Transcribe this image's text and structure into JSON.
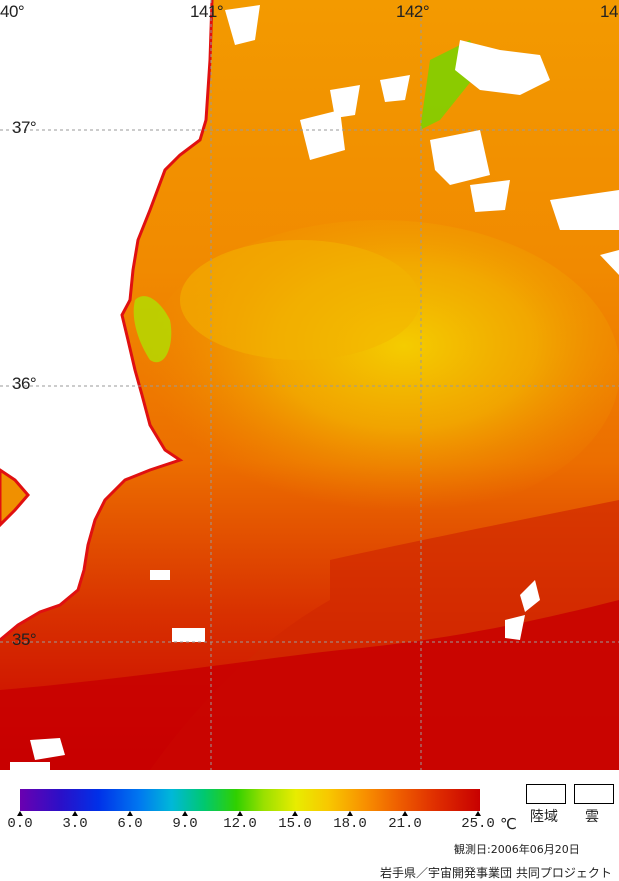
{
  "map": {
    "lon_labels": [
      "40°",
      "141°",
      "142°",
      "14"
    ],
    "lat_labels": [
      "37°",
      "36°",
      "35°"
    ],
    "colors": {
      "land": "#ffffff",
      "coastline": "#e01010",
      "grid": "#9a9a9a",
      "sea_cool": "#f2c200",
      "sea_mid": "#f09000",
      "sea_warm": "#e85000",
      "sea_hot": "#c80000",
      "sea_green": "#a8e000"
    }
  },
  "legend": {
    "scale_labels": [
      "0.0",
      "3.0",
      "6.0",
      "9.0",
      "12.0",
      "15.0",
      "18.0",
      "21.0",
      "25.0"
    ],
    "unit": "℃",
    "land_label": "陸域",
    "cloud_label": "雲"
  },
  "footer": {
    "observation_date": "観測日:2006年06月20日",
    "credit": "岩手県／宇宙開発事業団 共同プロジェクト"
  }
}
